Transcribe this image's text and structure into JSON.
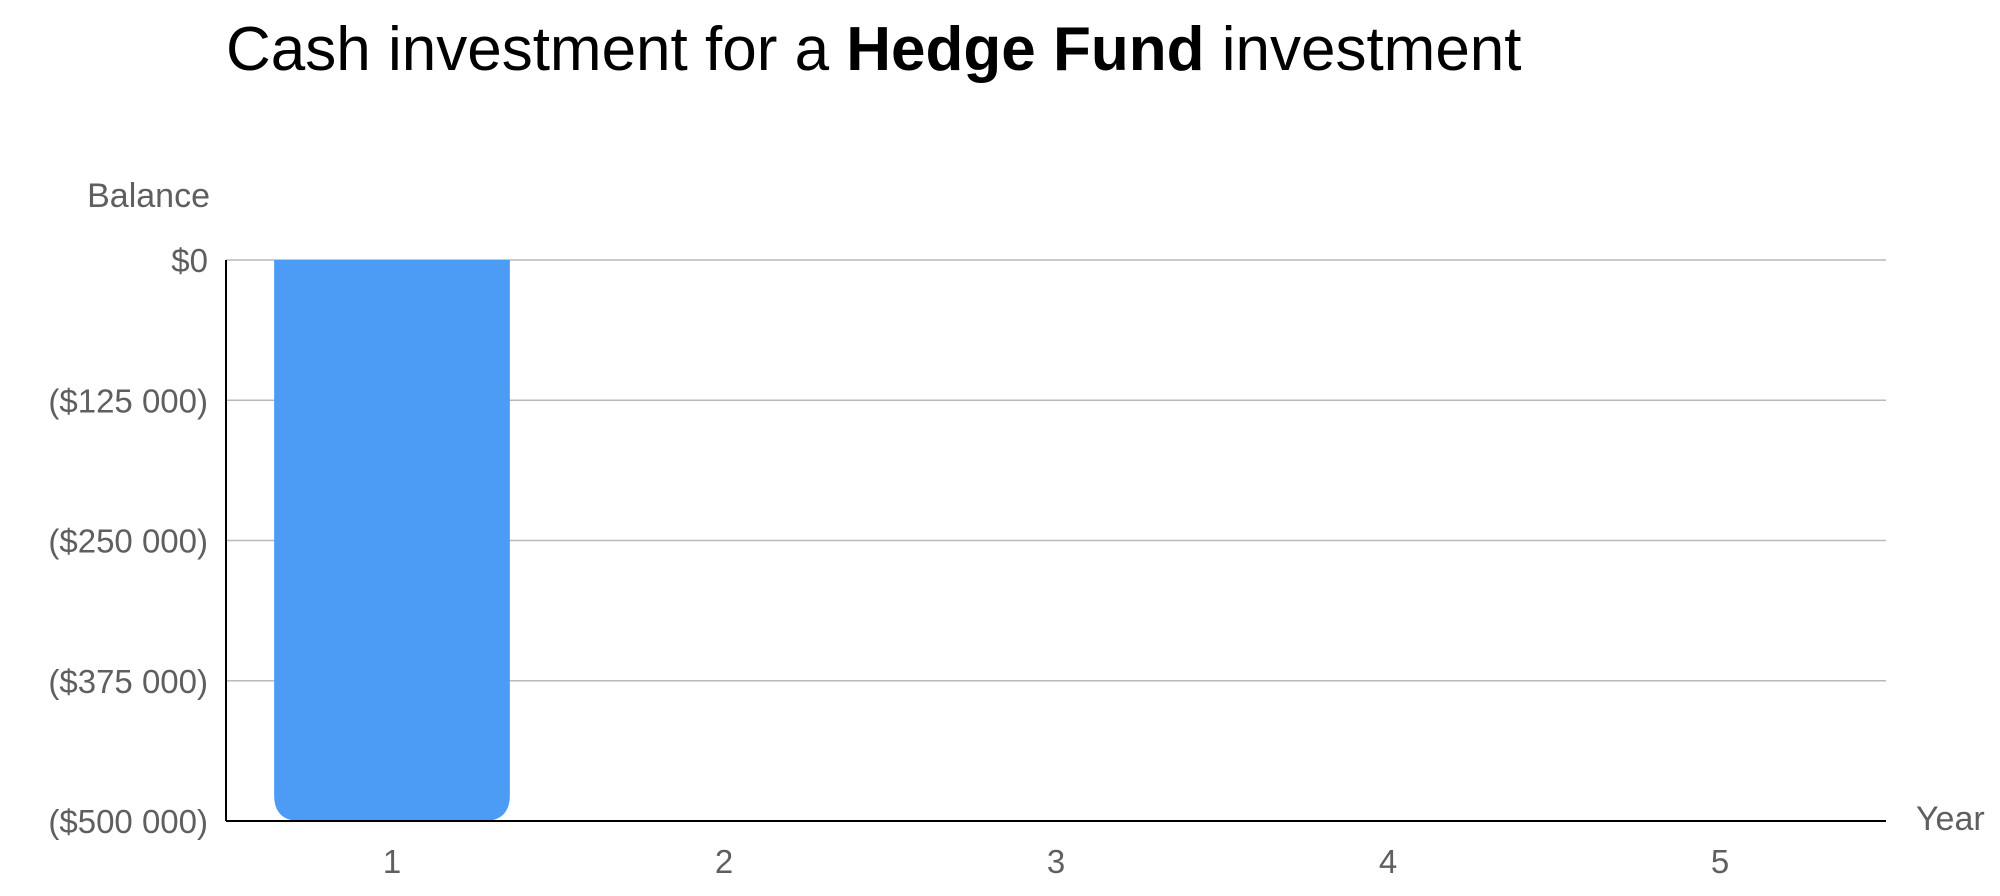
{
  "chart_data": {
    "type": "bar",
    "title_parts": [
      "Cash investment for a ",
      "Hedge Fund",
      " investment"
    ],
    "ylabel": "Balance",
    "xlabel": "Year",
    "categories": [
      "1",
      "2",
      "3",
      "4",
      "5"
    ],
    "series": [
      {
        "values": [
          -500000,
          0,
          0,
          0,
          0
        ]
      }
    ],
    "ylim": [
      -500000,
      0
    ],
    "yticks": [
      0,
      -125000,
      -250000,
      -375000,
      -500000
    ],
    "ytick_labels": [
      "$0",
      "($125 000)",
      "($250 000)",
      "($375 000)",
      "($500 000)"
    ],
    "grid": true,
    "colors": {
      "bar": "#4c9bf5",
      "grid": "#b9b9b9",
      "axis": "#000000",
      "text": "#5f5f5f"
    }
  }
}
